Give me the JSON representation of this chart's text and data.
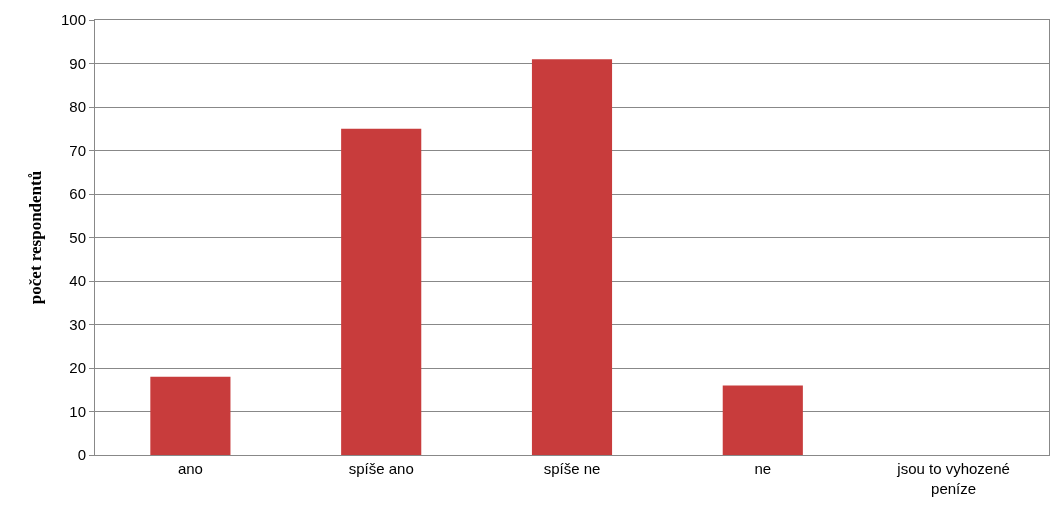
{
  "chart_data": {
    "type": "bar",
    "ylabel": "počet respondentů",
    "categories": [
      "ano",
      "spíše ano",
      "spíše ne",
      "ne",
      "jsou to vyhozené peníze"
    ],
    "values": [
      18,
      75,
      91,
      16,
      0
    ],
    "color": "#c83c3c",
    "ylim": [
      0,
      100
    ],
    "yticks": [
      0,
      10,
      20,
      30,
      40,
      50,
      60,
      70,
      80,
      90,
      100
    ],
    "grid": "y",
    "legend": false
  }
}
